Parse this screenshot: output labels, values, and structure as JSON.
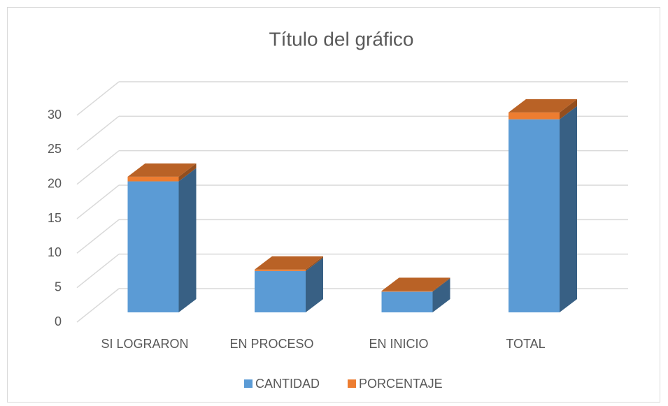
{
  "chart_data": {
    "type": "bar3d_stacked",
    "title": "Título del gráfico",
    "categories": [
      "SI LOGRARON",
      "EN PROCESO",
      "EN INICIO",
      "TOTAL"
    ],
    "series": [
      {
        "name": "CANTIDAD",
        "color": "#5b9bd5",
        "values": [
          19,
          6,
          3,
          28
        ]
      },
      {
        "name": "PORCENTAJE",
        "color": "#ed7d31",
        "values": [
          0.68,
          0.21,
          0.11,
          1
        ]
      }
    ],
    "ylim": [
      0,
      30
    ],
    "yticks": [
      0,
      5,
      10,
      15,
      20,
      25,
      30
    ],
    "grid": true,
    "legend": "bottom"
  }
}
